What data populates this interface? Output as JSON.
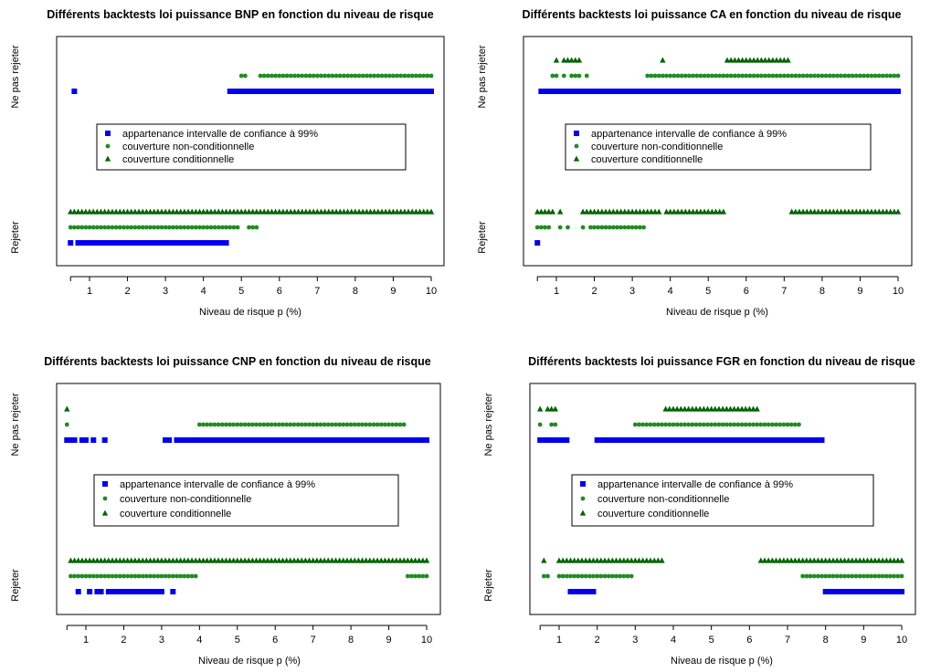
{
  "figure": {
    "panels": [
      {
        "title": "Différents backtests loi puissance BNP en fonction du niveau de risque"
      },
      {
        "title": "Différents backtests loi puissance CA en fonction du niveau de risque"
      },
      {
        "title": "Différents backtests loi puissance CNP en fonction du niveau de risque"
      },
      {
        "title": "Différents backtests loi puissance FGR en fonction du niveau de risque"
      }
    ]
  },
  "colors": {
    "interval": "#0000ee",
    "non_conditional": "#228b22",
    "conditional": "#006400",
    "frame": "#000000"
  },
  "chart_data": [
    {
      "type": "scatter",
      "title": "Différents backtests loi puissance BNP en fonction du niveau de risque",
      "xlabel": "Niveau de risque p (%)",
      "ylabel_top": "Ne pas rejeter",
      "ylabel_bottom": "Rejeter",
      "x_ticks": [
        "1",
        "2",
        "3",
        "4",
        "5",
        "6",
        "7",
        "8",
        "9",
        "10"
      ],
      "xlim": [
        0.5,
        10
      ],
      "x_step": 0.1,
      "legend": {
        "placement": "center",
        "entries": [
          "appartenance intervalle de confiance à 99%",
          "couverture non-conditionnelle",
          "couverture conditionnelle"
        ]
      },
      "series": [
        {
          "name": "appartenance intervalle de confiance à 99%",
          "shape": "square",
          "accept_ranges": [
            [
              0.6,
              0.6
            ],
            [
              4.7,
              10.0
            ]
          ]
        },
        {
          "name": "couverture non-conditionnelle",
          "shape": "circle",
          "accept_ranges": [
            [
              5.0,
              5.1
            ],
            [
              5.5,
              10.0
            ]
          ]
        },
        {
          "name": "couverture conditionnelle",
          "shape": "triangle",
          "accept_ranges": []
        }
      ]
    },
    {
      "type": "scatter",
      "title": "Différents backtests loi puissance CA en fonction du niveau de risque",
      "xlabel": "Niveau de risque p (%)",
      "ylabel_top": "Ne pas rejeter",
      "ylabel_bottom": "Rejeter",
      "x_ticks": [
        "1",
        "2",
        "3",
        "4",
        "5",
        "6",
        "7",
        "8",
        "9",
        "10"
      ],
      "xlim": [
        0.5,
        10
      ],
      "x_step": 0.1,
      "legend": {
        "placement": "center",
        "entries": [
          "appartenance intervalle de confiance à 99%",
          "couverture non-conditionnelle",
          "couverture conditionnelle"
        ]
      },
      "series": [
        {
          "name": "appartenance intervalle de confiance à 99%",
          "shape": "square",
          "accept_ranges": [
            [
              0.6,
              10.0
            ]
          ]
        },
        {
          "name": "couverture non-conditionnelle",
          "shape": "circle",
          "accept_ranges": [
            [
              0.9,
              1.0
            ],
            [
              1.2,
              1.2
            ],
            [
              1.4,
              1.6
            ],
            [
              1.8,
              1.8
            ],
            [
              3.4,
              10.0
            ]
          ]
        },
        {
          "name": "couverture conditionnelle",
          "shape": "triangle",
          "accept_ranges": [
            [
              1.0,
              1.0
            ],
            [
              1.2,
              1.6
            ],
            [
              3.8,
              3.8
            ],
            [
              5.5,
              7.1
            ]
          ]
        }
      ]
    },
    {
      "type": "scatter",
      "title": "Différents backtests loi puissance CNP en fonction du niveau de risque",
      "xlabel": "Niveau de risque p (%)",
      "ylabel_top": "Ne pas rejeter",
      "ylabel_bottom": "Rejeter",
      "x_ticks": [
        "1",
        "2",
        "3",
        "4",
        "5",
        "6",
        "7",
        "8",
        "9",
        "10"
      ],
      "xlim": [
        0.5,
        10
      ],
      "x_step": 0.1,
      "legend": {
        "placement": "center",
        "entries": [
          "appartenance intervalle de confiance à 99%",
          "couverture non-conditionnelle",
          "couverture conditionnelle"
        ]
      },
      "series": [
        {
          "name": "appartenance intervalle de confiance à 99%",
          "shape": "square",
          "accept_ranges": [
            [
              0.5,
              0.7
            ],
            [
              0.9,
              1.0
            ],
            [
              1.2,
              1.2
            ],
            [
              1.5,
              1.5
            ],
            [
              3.1,
              3.2
            ],
            [
              3.4,
              10.0
            ]
          ]
        },
        {
          "name": "couverture non-conditionnelle",
          "shape": "circle",
          "accept_ranges": [
            [
              0.5,
              0.5
            ],
            [
              4.0,
              9.4
            ]
          ]
        },
        {
          "name": "couverture conditionnelle",
          "shape": "triangle",
          "accept_ranges": [
            [
              0.5,
              0.5
            ]
          ]
        }
      ]
    },
    {
      "type": "scatter",
      "title": "Différents backtests loi puissance FGR en fonction du niveau de risque",
      "xlabel": "Niveau de risque p (%)",
      "ylabel_top": "Ne pas rejeter",
      "ylabel_bottom": "Rejeter",
      "x_ticks": [
        "1",
        "2",
        "3",
        "4",
        "5",
        "6",
        "7",
        "8",
        "9",
        "10"
      ],
      "xlim": [
        0.5,
        10
      ],
      "x_step": 0.1,
      "legend": {
        "placement": "center",
        "entries": [
          "appartenance intervalle de confiance à 99%",
          "couverture non-conditionnelle",
          "couverture conditionnelle"
        ]
      },
      "series": [
        {
          "name": "appartenance intervalle de confiance à 99%",
          "shape": "square",
          "accept_ranges": [
            [
              0.5,
              1.2
            ],
            [
              2.0,
              7.9
            ]
          ]
        },
        {
          "name": "couverture non-conditionnelle",
          "shape": "circle",
          "accept_ranges": [
            [
              0.5,
              0.5
            ],
            [
              0.8,
              0.9
            ],
            [
              3.0,
              7.3
            ]
          ]
        },
        {
          "name": "couverture conditionnelle",
          "shape": "triangle",
          "accept_ranges": [
            [
              0.5,
              0.5
            ],
            [
              0.7,
              0.9
            ],
            [
              3.8,
              6.2
            ]
          ]
        }
      ]
    }
  ]
}
